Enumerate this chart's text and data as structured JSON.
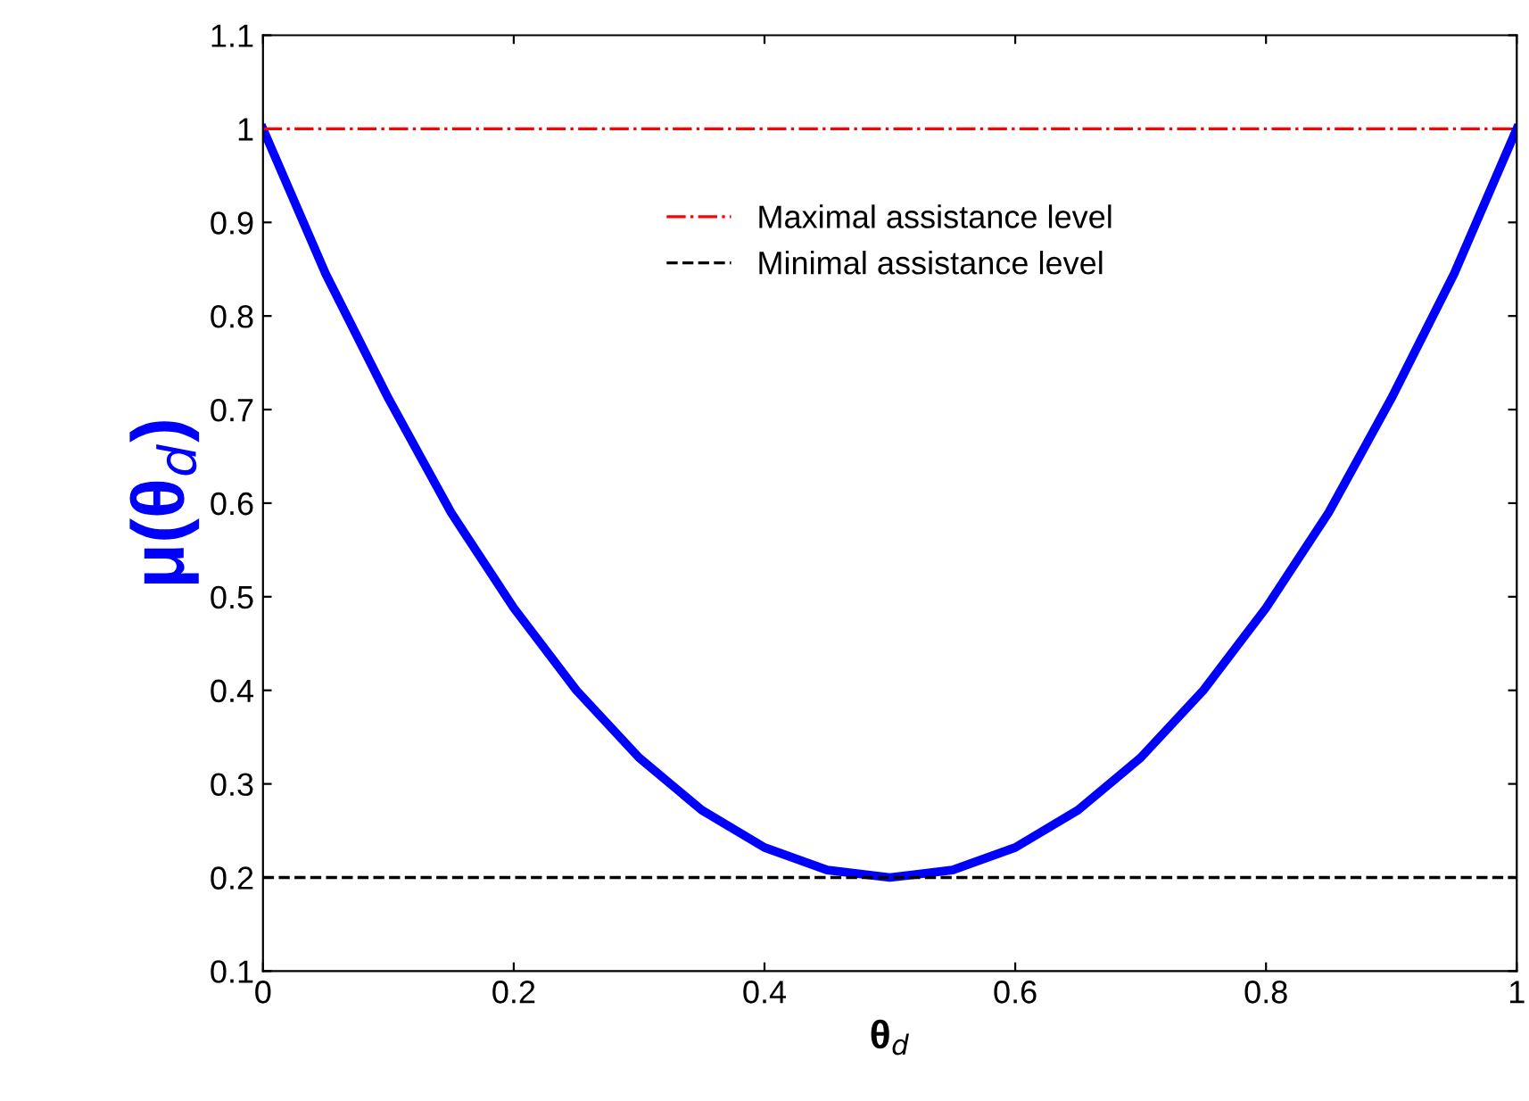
{
  "chart_data": {
    "type": "line",
    "xlabel": "θ$_{d}$",
    "ylabel": "μ(θ$_{d}$)",
    "x": [
      0,
      0.05,
      0.1,
      0.15,
      0.2,
      0.25,
      0.3,
      0.35,
      0.4,
      0.45,
      0.5,
      0.55,
      0.6,
      0.65,
      0.7,
      0.75,
      0.8,
      0.85,
      0.9,
      0.95,
      1
    ],
    "series": [
      {
        "color": "#0000ff",
        "values": [
          1,
          0.845,
          0.712,
          0.59,
          0.488,
          0.4,
          0.328,
          0.272,
          0.232,
          0.208,
          0.2,
          0.208,
          0.232,
          0.272,
          0.328,
          0.4,
          0.488,
          0.59,
          0.712,
          0.845,
          1
        ]
      }
    ],
    "ref_lines": [
      {
        "axis": "y",
        "value": 1,
        "label": "Maximal assistance level",
        "color": "#ff0000",
        "line_style": "dashdot"
      },
      {
        "axis": "y",
        "value": 0.2,
        "label": "Minimal assistance level",
        "color": "#000000",
        "line_style": "dashed"
      }
    ],
    "xlim": [
      0,
      1
    ],
    "xticks": [
      0,
      0.2,
      0.4,
      0.6,
      0.8,
      1
    ],
    "ylim": [
      0.1,
      1.1
    ],
    "yticks": [
      0.1,
      0.2,
      0.3,
      0.4,
      0.5,
      0.6,
      0.7,
      0.8,
      0.9,
      1,
      1.1
    ],
    "grid": false,
    "legend": "top",
    "marker": "none",
    "line_style": "solid"
  }
}
